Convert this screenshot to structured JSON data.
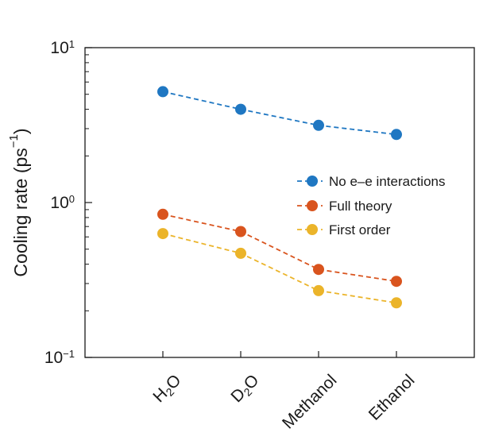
{
  "chart_data": {
    "type": "line",
    "categories": [
      {
        "base": "H",
        "sub": "2",
        "tail": "O"
      },
      {
        "base": "D",
        "sub": "2",
        "tail": "O"
      },
      {
        "base": "Methanol",
        "sub": "",
        "tail": ""
      },
      {
        "base": "Ethanol",
        "sub": "",
        "tail": ""
      }
    ],
    "series": [
      {
        "name": "No e–e interactions",
        "color": "#1f77c2",
        "values": [
          5.2,
          4.0,
          3.15,
          2.75
        ]
      },
      {
        "name": "Full theory",
        "color": "#d9541e",
        "values": [
          0.84,
          0.65,
          0.37,
          0.31
        ]
      },
      {
        "name": "First order",
        "color": "#ebb42a",
        "values": [
          0.63,
          0.47,
          0.27,
          0.225
        ]
      }
    ],
    "ylabel": {
      "text": "Cooling rate (ps",
      "exp": "−1",
      "close": ")"
    },
    "yscale": "log",
    "ylim": [
      0.1,
      10
    ],
    "yticks": [
      {
        "base": "10",
        "exp": "1",
        "value": 10
      },
      {
        "base": "10",
        "exp": "0",
        "value": 1
      },
      {
        "base": "10",
        "exp": "−1",
        "value": 0.1
      }
    ],
    "grid": false,
    "legend_position": "center-right",
    "line_style": "dashed"
  }
}
